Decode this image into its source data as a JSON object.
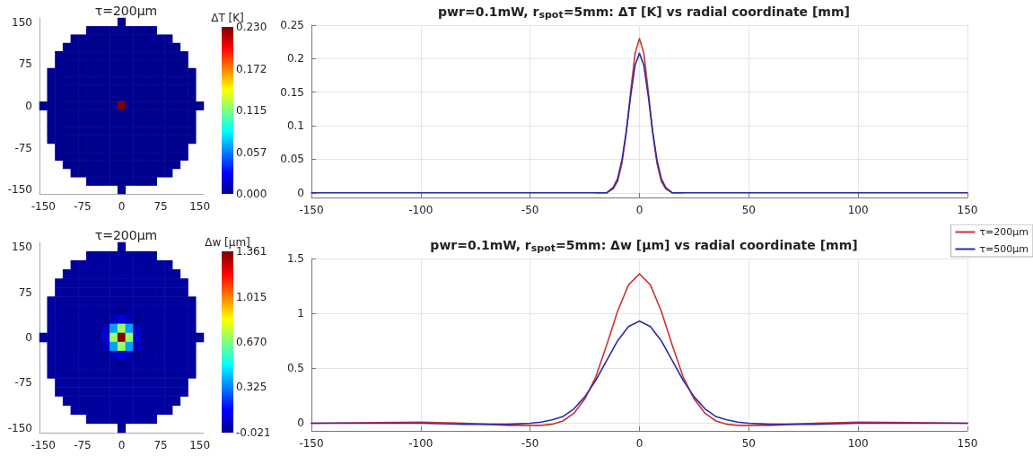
{
  "chart_data": [
    {
      "type": "heatmap",
      "title": "τ=200μm",
      "clabel": "ΔT [K]",
      "categories": [
        "-150",
        null,
        null,
        null,
        null,
        "-75",
        null,
        null,
        null,
        null,
        "0",
        null,
        null,
        null,
        null,
        "75",
        null,
        null,
        null,
        null,
        "150"
      ],
      "y_categories": [
        "150",
        null,
        null,
        null,
        null,
        "75",
        null,
        null,
        null,
        null,
        "0",
        null,
        null,
        null,
        null,
        "-75",
        null,
        null,
        null,
        null,
        "-150"
      ],
      "cells": [
        [
          null,
          null,
          null,
          null,
          null,
          null,
          null,
          null,
          null,
          null,
          0,
          null,
          null,
          null,
          null,
          null,
          null,
          null,
          null,
          null,
          null
        ],
        [
          null,
          null,
          null,
          null,
          null,
          null,
          0,
          0,
          0,
          0,
          0,
          0,
          0,
          0,
          0,
          null,
          null,
          null,
          null,
          null,
          null
        ],
        [
          null,
          null,
          null,
          null,
          0,
          0,
          0,
          0,
          0,
          0,
          0,
          0,
          0,
          0,
          0,
          0,
          0,
          null,
          null,
          null,
          null
        ],
        [
          null,
          null,
          null,
          0,
          0,
          0,
          0,
          0,
          0,
          0,
          0,
          0,
          0,
          0,
          0,
          0,
          0,
          0,
          null,
          null,
          null
        ],
        [
          null,
          null,
          0,
          0,
          0,
          0,
          0,
          0,
          0,
          0,
          0,
          0,
          0,
          0,
          0,
          0,
          0,
          0,
          0,
          null,
          null
        ],
        [
          null,
          null,
          0,
          0,
          0,
          0,
          0,
          0,
          0,
          0,
          0,
          0,
          0,
          0,
          0,
          0,
          0,
          0,
          0,
          null,
          null
        ],
        [
          null,
          0,
          0,
          0,
          0,
          0,
          0,
          0,
          0,
          0,
          0,
          0,
          0,
          0,
          0,
          0,
          0,
          0,
          0,
          0,
          null
        ],
        [
          null,
          0,
          0,
          0,
          0,
          0,
          0,
          0,
          0,
          0,
          0,
          0,
          0,
          0,
          0,
          0,
          0,
          0,
          0,
          0,
          null
        ],
        [
          null,
          0,
          0,
          0,
          0,
          0,
          0,
          0,
          0,
          0,
          0,
          0,
          0,
          0,
          0,
          0,
          0,
          0,
          0,
          0,
          null
        ],
        [
          null,
          0,
          0,
          0,
          0,
          0,
          0,
          0,
          0,
          0,
          0,
          0,
          0,
          0,
          0,
          0,
          0,
          0,
          0,
          0,
          null
        ],
        [
          0,
          0,
          0,
          0,
          0,
          0,
          0,
          0,
          0,
          0,
          0.23,
          0,
          0,
          0,
          0,
          0,
          0,
          0,
          0,
          0,
          0
        ],
        [
          null,
          0,
          0,
          0,
          0,
          0,
          0,
          0,
          0,
          0,
          0,
          0,
          0,
          0,
          0,
          0,
          0,
          0,
          0,
          0,
          null
        ],
        [
          null,
          0,
          0,
          0,
          0,
          0,
          0,
          0,
          0,
          0,
          0,
          0,
          0,
          0,
          0,
          0,
          0,
          0,
          0,
          0,
          null
        ],
        [
          null,
          0,
          0,
          0,
          0,
          0,
          0,
          0,
          0,
          0,
          0,
          0,
          0,
          0,
          0,
          0,
          0,
          0,
          0,
          0,
          null
        ],
        [
          null,
          0,
          0,
          0,
          0,
          0,
          0,
          0,
          0,
          0,
          0,
          0,
          0,
          0,
          0,
          0,
          0,
          0,
          0,
          0,
          null
        ],
        [
          null,
          null,
          0,
          0,
          0,
          0,
          0,
          0,
          0,
          0,
          0,
          0,
          0,
          0,
          0,
          0,
          0,
          0,
          0,
          null,
          null
        ],
        [
          null,
          null,
          0,
          0,
          0,
          0,
          0,
          0,
          0,
          0,
          0,
          0,
          0,
          0,
          0,
          0,
          0,
          0,
          0,
          null,
          null
        ],
        [
          null,
          null,
          null,
          0,
          0,
          0,
          0,
          0,
          0,
          0,
          0,
          0,
          0,
          0,
          0,
          0,
          0,
          0,
          null,
          null,
          null
        ],
        [
          null,
          null,
          null,
          null,
          0,
          0,
          0,
          0,
          0,
          0,
          0,
          0,
          0,
          0,
          0,
          0,
          0,
          null,
          null,
          null,
          null
        ],
        [
          null,
          null,
          null,
          null,
          null,
          null,
          0,
          0,
          0,
          0,
          0,
          0,
          0,
          0,
          0,
          null,
          null,
          null,
          null,
          null,
          null
        ],
        [
          null,
          null,
          null,
          null,
          null,
          null,
          null,
          null,
          null,
          null,
          0,
          null,
          null,
          null,
          null,
          null,
          null,
          null,
          null,
          null,
          null
        ]
      ],
      "clim": [
        0,
        0.23
      ],
      "cticks": [
        {
          "value": 0,
          "label": "0.000"
        },
        {
          "value": 0.057,
          "label": "0.057"
        },
        {
          "value": 0.115,
          "label": "0.115"
        },
        {
          "value": 0.172,
          "label": "0.172"
        },
        {
          "value": 0.23,
          "label": "0.230"
        }
      ]
    },
    {
      "type": "line",
      "title": "pwr=0.1mW, r$_{spot}$=5mm: ΔT [K] vs radial coordinate [mm]",
      "x": [
        -150,
        -50,
        -20,
        -15,
        -12,
        -10,
        -8,
        -6,
        -4,
        -2,
        0,
        2,
        4,
        6,
        8,
        10,
        12,
        15,
        20,
        50,
        150
      ],
      "series": [
        {
          "color": "#cc3333",
          "values": [
            null,
            null,
            0,
            0,
            0.006,
            0.017,
            0.044,
            0.091,
            0.152,
            0.208,
            0.23,
            0.208,
            0.152,
            0.091,
            0.044,
            0.017,
            0.006,
            0,
            0,
            null,
            null
          ]
        },
        {
          "color": "#2b2ba8",
          "values": [
            0,
            0,
            0,
            0,
            0.008,
            0.021,
            0.049,
            0.092,
            0.145,
            0.19,
            0.208,
            0.19,
            0.145,
            0.092,
            0.049,
            0.021,
            0.008,
            0,
            0,
            0,
            0
          ]
        }
      ],
      "xlim": [
        -150,
        150
      ],
      "xticks": [
        -150,
        -100,
        -50,
        0,
        50,
        100,
        150
      ],
      "ylim": [
        -0.007,
        0.25
      ],
      "yticks": [
        0,
        0.05,
        0.1,
        0.15,
        0.2,
        0.25
      ],
      "grid": true
    },
    {
      "type": "heatmap",
      "title": "τ=200μm",
      "clabel": "Δw [μm]",
      "categories": [
        "-150",
        null,
        null,
        null,
        null,
        "-75",
        null,
        null,
        null,
        null,
        "0",
        null,
        null,
        null,
        null,
        "75",
        null,
        null,
        null,
        null,
        "150"
      ],
      "y_categories": [
        "150",
        null,
        null,
        null,
        null,
        "75",
        null,
        null,
        null,
        null,
        "0",
        null,
        null,
        null,
        null,
        "-75",
        null,
        null,
        null,
        null,
        "-150"
      ],
      "cells": [
        [
          null,
          null,
          null,
          null,
          null,
          null,
          null,
          null,
          null,
          null,
          0,
          null,
          null,
          null,
          null,
          null,
          null,
          null,
          null,
          null,
          null
        ],
        [
          null,
          null,
          null,
          null,
          null,
          null,
          0,
          0,
          0,
          0,
          0,
          0,
          0,
          0,
          0,
          null,
          null,
          null,
          null,
          null,
          null
        ],
        [
          null,
          null,
          null,
          null,
          0,
          0,
          0,
          0,
          0,
          0,
          0,
          0,
          0,
          0,
          0,
          0,
          0,
          null,
          null,
          null,
          null
        ],
        [
          null,
          null,
          null,
          0,
          0,
          0,
          0,
          0,
          0,
          0,
          0,
          0,
          0,
          0,
          0,
          0,
          0,
          0,
          null,
          null,
          null
        ],
        [
          null,
          null,
          0,
          0,
          0,
          0,
          0,
          0,
          0,
          0,
          0,
          0,
          0,
          0,
          0,
          0,
          0,
          0,
          0,
          null,
          null
        ],
        [
          null,
          null,
          0,
          0,
          0,
          0,
          0,
          0,
          0,
          0,
          0,
          0,
          0,
          0,
          0,
          0,
          0,
          0,
          0,
          null,
          null
        ],
        [
          null,
          0,
          0,
          0,
          0,
          0,
          0,
          0,
          0,
          0,
          0,
          0,
          0,
          0,
          0,
          0,
          0,
          0,
          0,
          0,
          null
        ],
        [
          null,
          0,
          0,
          0,
          0,
          0,
          0,
          0,
          0,
          0,
          -0.02,
          0,
          0,
          0,
          0,
          0,
          0,
          0,
          0,
          0,
          null
        ],
        [
          null,
          0,
          0,
          0,
          0,
          0,
          0,
          0,
          -0.02,
          0.04,
          0.09,
          0.04,
          -0.02,
          0,
          0,
          0,
          0,
          0,
          0,
          0,
          null
        ],
        [
          null,
          0,
          0,
          0,
          0,
          0,
          0,
          0,
          0.04,
          0.37,
          0.71,
          0.37,
          0.04,
          0,
          0,
          0,
          0,
          0,
          0,
          0,
          null
        ],
        [
          0,
          0,
          0,
          0,
          0,
          0,
          0,
          -0.02,
          0.09,
          0.71,
          1.36,
          0.71,
          0.09,
          -0.02,
          0,
          0,
          0,
          0,
          0,
          0,
          0
        ],
        [
          null,
          0,
          0,
          0,
          0,
          0,
          0,
          0,
          0.04,
          0.37,
          0.71,
          0.37,
          0.04,
          0,
          0,
          0,
          0,
          0,
          0,
          0,
          null
        ],
        [
          null,
          0,
          0,
          0,
          0,
          0,
          0,
          0,
          -0.02,
          0.04,
          0.09,
          0.04,
          -0.02,
          0,
          0,
          0,
          0,
          0,
          0,
          0,
          null
        ],
        [
          null,
          0,
          0,
          0,
          0,
          0,
          0,
          0,
          0,
          0,
          -0.02,
          0,
          0,
          0,
          0,
          0,
          0,
          0,
          0,
          0,
          null
        ],
        [
          null,
          0,
          0,
          0,
          0,
          0,
          0,
          0,
          0,
          0,
          0,
          0,
          0,
          0,
          0,
          0,
          0,
          0,
          0,
          0,
          null
        ],
        [
          null,
          null,
          0,
          0,
          0,
          0,
          0,
          0,
          0,
          0,
          0,
          0,
          0,
          0,
          0,
          0,
          0,
          0,
          0,
          null,
          null
        ],
        [
          null,
          null,
          0,
          0,
          0,
          0,
          0,
          0,
          0,
          0,
          0,
          0,
          0,
          0,
          0,
          0,
          0,
          0,
          0,
          null,
          null
        ],
        [
          null,
          null,
          null,
          0,
          0,
          0,
          0,
          0,
          0,
          0,
          0,
          0,
          0,
          0,
          0,
          0,
          0,
          0,
          null,
          null,
          null
        ],
        [
          null,
          null,
          null,
          null,
          0,
          0,
          0,
          0,
          0,
          0,
          0,
          0,
          0,
          0,
          0,
          0,
          0,
          null,
          null,
          null,
          null
        ],
        [
          null,
          null,
          null,
          null,
          null,
          null,
          0,
          0,
          0,
          0,
          0,
          0,
          0,
          0,
          0,
          null,
          null,
          null,
          null,
          null,
          null
        ],
        [
          null,
          null,
          null,
          null,
          null,
          null,
          null,
          null,
          null,
          null,
          0,
          null,
          null,
          null,
          null,
          null,
          null,
          null,
          null,
          null,
          null
        ]
      ],
      "clim": [
        -0.021,
        1.361
      ],
      "cticks": [
        {
          "value": -0.021,
          "label": "-0.021"
        },
        {
          "value": 0.325,
          "label": "0.325"
        },
        {
          "value": 0.67,
          "label": "0.670"
        },
        {
          "value": 1.015,
          "label": "1.015"
        },
        {
          "value": 1.361,
          "label": "1.361"
        }
      ]
    },
    {
      "type": "line",
      "title": "pwr=0.1mW, r$_{spot}$=5mm: Δw [μm] vs radial coordinate [mm]",
      "x": [
        -150,
        -100,
        -80,
        -70,
        -60,
        -50,
        -45,
        -40,
        -35,
        -30,
        -25,
        -20,
        -15,
        -10,
        -5,
        0,
        5,
        10,
        15,
        20,
        25,
        30,
        35,
        40,
        45,
        50,
        60,
        70,
        80,
        100,
        150
      ],
      "series": [
        {
          "name": "τ=200μm",
          "color": "#cc3333",
          "values": [
            0,
            0.01,
            0,
            -0.01,
            -0.02,
            -0.02,
            -0.02,
            -0.01,
            0.02,
            0.09,
            0.22,
            0.42,
            0.71,
            1.02,
            1.26,
            1.36,
            1.26,
            1.02,
            0.71,
            0.42,
            0.22,
            0.09,
            0.02,
            -0.01,
            -0.02,
            -0.02,
            -0.02,
            -0.01,
            0,
            0.01,
            0
          ]
        },
        {
          "name": "τ=500μm",
          "color": "#2b2ba8",
          "values": [
            0,
            0,
            -0.01,
            -0.01,
            -0.01,
            0,
            0.01,
            0.03,
            0.06,
            0.13,
            0.24,
            0.39,
            0.57,
            0.75,
            0.88,
            0.93,
            0.88,
            0.75,
            0.57,
            0.39,
            0.24,
            0.13,
            0.06,
            0.03,
            0.01,
            0,
            -0.01,
            -0.01,
            -0.01,
            0,
            0
          ]
        }
      ],
      "xlim": [
        -150,
        150
      ],
      "xticks": [
        -150,
        -100,
        -50,
        0,
        50,
        100,
        150
      ],
      "ylim": [
        -0.07,
        1.5
      ],
      "yticks": [
        0,
        0.5,
        1,
        1.5
      ],
      "grid": true,
      "legend": "top right"
    }
  ]
}
